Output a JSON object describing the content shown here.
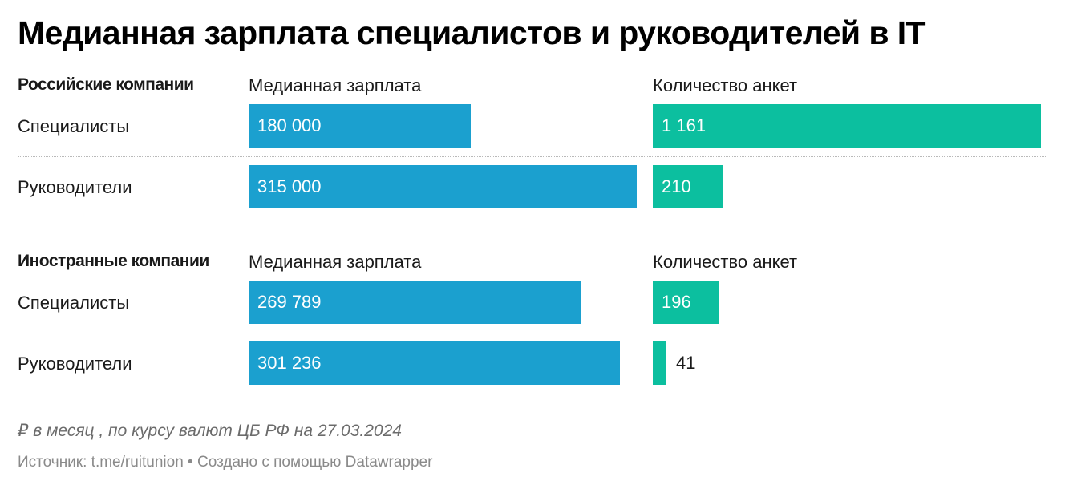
{
  "title": "Медианная зарплата специалистов и руководителей в IT",
  "columns": {
    "salary": "Медианная зарплата",
    "count": "Количество анкет"
  },
  "colors": {
    "salary": "#1ba0cf",
    "count": "#0cbf9f"
  },
  "chart_data": {
    "type": "bar",
    "orientation": "horizontal",
    "title": "Медианная зарплата специалистов и руководителей в IT",
    "salary_max": 315000,
    "count_max": 1161,
    "groups": [
      {
        "name": "Российские компании",
        "rows": [
          {
            "label": "Специалисты",
            "salary": 180000,
            "salary_label": "180 000",
            "count": 1161,
            "count_label": "1 161"
          },
          {
            "label": "Руководители",
            "salary": 315000,
            "salary_label": "315 000",
            "count": 210,
            "count_label": "210"
          }
        ]
      },
      {
        "name": "Иностранные компании",
        "rows": [
          {
            "label": "Специалисты",
            "salary": 269789,
            "salary_label": "269 789",
            "count": 196,
            "count_label": "196"
          },
          {
            "label": "Руководители",
            "salary": 301236,
            "salary_label": "301 236",
            "count": 41,
            "count_label": "41"
          }
        ]
      }
    ]
  },
  "note": "₽ в месяц , по курсу валют ЦБ РФ на 27.03.2024",
  "source": "Источник: t.me/ruitunion • Создано с помощью Datawrapper"
}
